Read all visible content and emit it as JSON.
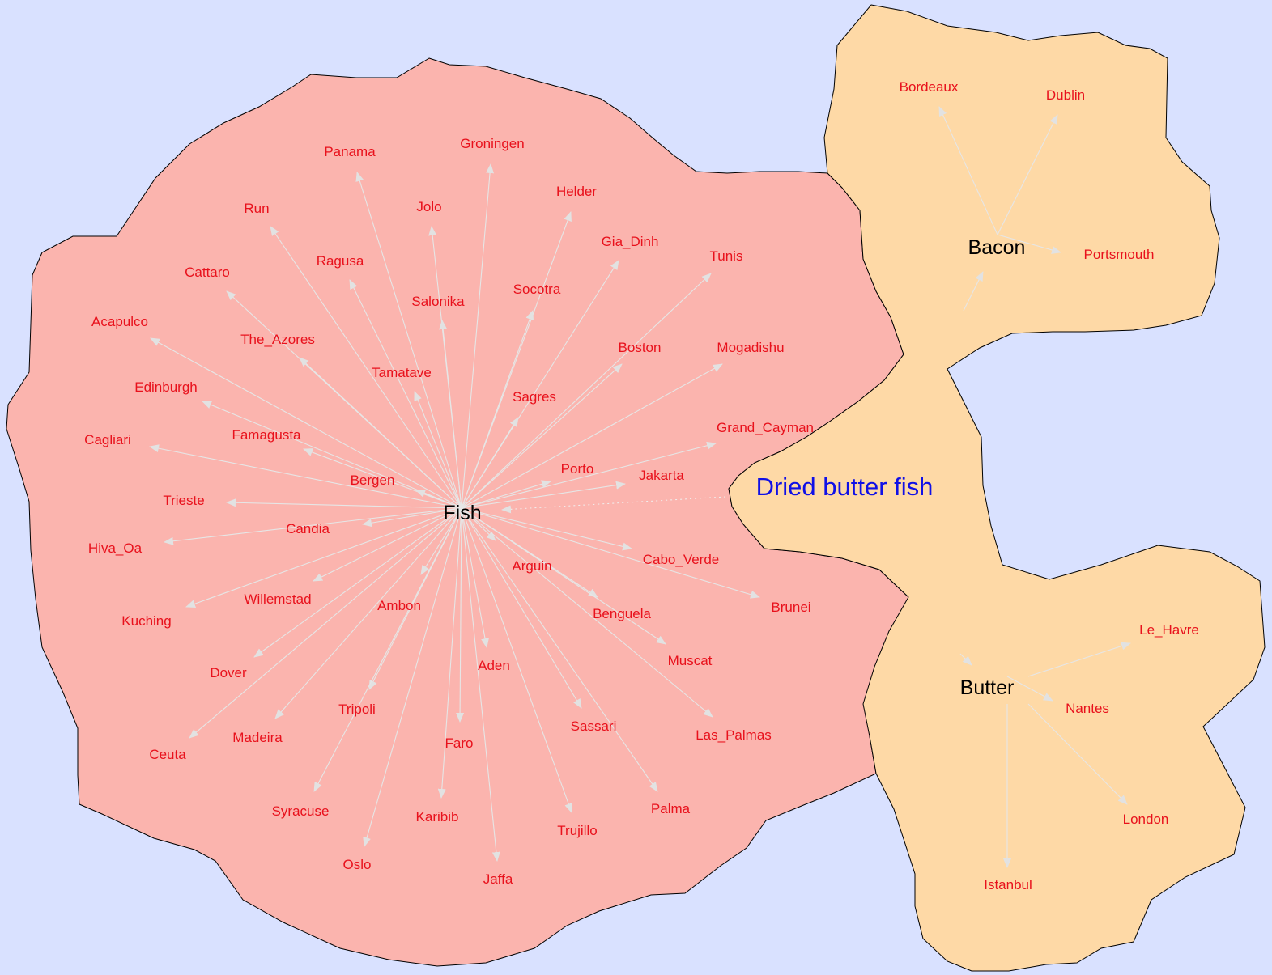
{
  "cluster_label": "Dried butter fish",
  "hubs": {
    "fish": "Fish",
    "bacon": "Bacon",
    "butter": "Butter"
  },
  "fish_cities": [
    "Groningen",
    "Panama",
    "Helder",
    "Jolo",
    "Run",
    "Gia_Dinh",
    "Tunis",
    "Ragusa",
    "Cattaro",
    "Socotra",
    "Salonika",
    "Acapulco",
    "The_Azores",
    "Boston",
    "Mogadishu",
    "Tamatave",
    "Edinburgh",
    "Sagres",
    "Grand_Cayman",
    "Famagusta",
    "Cagliari",
    "Porto",
    "Jakarta",
    "Bergen",
    "Trieste",
    "Candia",
    "Hiva_Oa",
    "Cabo_Verde",
    "Arguin",
    "Willemstad",
    "Brunei",
    "Ambon",
    "Benguela",
    "Kuching",
    "Muscat",
    "Aden",
    "Dover",
    "Tripoli",
    "Sassari",
    "Las_Palmas",
    "Madeira",
    "Faro",
    "Ceuta",
    "Palma",
    "Syracuse",
    "Karibib",
    "Trujillo",
    "Oslo",
    "Jaffa"
  ],
  "bacon_cities": [
    "Bordeaux",
    "Dublin",
    "Portsmouth"
  ],
  "butter_cities": [
    "Le_Havre",
    "Nantes",
    "London",
    "Istanbul"
  ]
}
